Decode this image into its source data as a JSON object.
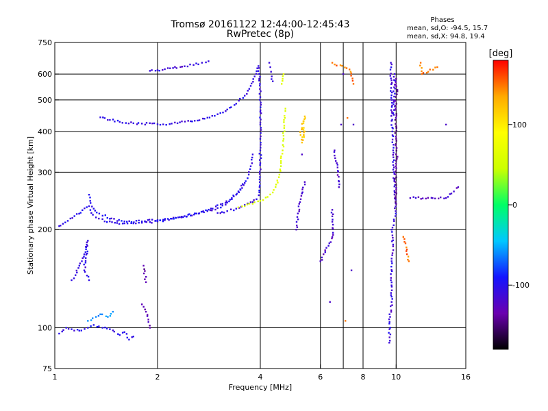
{
  "chart_data": {
    "type": "scatter",
    "title": "Tromsø 20161122 12:44:00-12:45:43",
    "subtitle": "RwPretec (8p)",
    "xlabel": "Frequency [MHz]",
    "ylabel": "Stationary phase Virtual Height [km]",
    "xscale": "log",
    "yscale": "log",
    "xlim": [
      1,
      16
    ],
    "ylim": [
      75,
      750
    ],
    "xticks": [
      1,
      2,
      4,
      6,
      8,
      10,
      16
    ],
    "yticks": [
      75,
      100,
      200,
      300,
      400,
      500,
      600,
      750
    ],
    "xgrid": [
      2,
      4,
      6,
      7,
      8,
      10
    ],
    "ygrid": [
      100,
      200,
      300,
      400,
      500,
      600
    ],
    "grid": true,
    "phase_stats": {
      "heading": "Phases",
      "line_o": "mean, sd,O: -94.5, 15.7",
      "line_x": "mean, sd,X: 94.8, 19.4"
    },
    "colorbar": {
      "label": "[deg]",
      "range": [
        -180,
        180
      ],
      "ticks": [
        100,
        0,
        -100
      ],
      "colors": [
        "#000000",
        "#6a00b0",
        "#1414ff",
        "#00c8ff",
        "#00ff66",
        "#ccff00",
        "#ffff00",
        "#ffaa00",
        "#ff0000"
      ]
    },
    "series": [
      {
        "phase": -105,
        "points": [
          [
            1.03,
            205
          ],
          [
            1.26,
            236
          ],
          [
            1.28,
            225
          ],
          [
            1.32,
            218
          ],
          [
            1.4,
            212
          ],
          [
            1.5,
            210
          ],
          [
            1.6,
            209
          ],
          [
            1.7,
            209
          ],
          [
            1.8,
            210
          ],
          [
            1.9,
            211
          ],
          [
            2.0,
            212
          ],
          [
            2.1,
            214
          ],
          [
            2.2,
            216
          ],
          [
            2.4,
            220
          ],
          [
            2.6,
            224
          ],
          [
            2.8,
            228
          ],
          [
            3.0,
            233
          ],
          [
            3.1,
            237
          ],
          [
            3.2,
            242
          ],
          [
            3.3,
            248
          ],
          [
            3.4,
            256
          ],
          [
            3.5,
            265
          ],
          [
            3.6,
            278
          ],
          [
            3.7,
            295
          ],
          [
            3.75,
            313
          ],
          [
            3.8,
            340
          ]
        ]
      },
      {
        "phase": -100,
        "points": [
          [
            1.26,
            256
          ],
          [
            1.27,
            245
          ],
          [
            1.3,
            232
          ],
          [
            1.35,
            224
          ],
          [
            1.45,
            216
          ],
          [
            1.6,
            212
          ],
          [
            1.8,
            212
          ],
          [
            2.0,
            214
          ],
          [
            2.3,
            218
          ],
          [
            2.6,
            224
          ],
          [
            2.9,
            232
          ],
          [
            3.1,
            240
          ],
          [
            3.3,
            250
          ],
          [
            3.45,
            262
          ],
          [
            3.55,
            276
          ]
        ]
      },
      {
        "phase": -105,
        "points": [
          [
            1.36,
            442
          ],
          [
            1.45,
            434
          ],
          [
            1.55,
            428
          ],
          [
            1.7,
            424
          ],
          [
            1.8,
            423
          ],
          [
            2.0,
            421
          ],
          [
            2.2,
            423
          ],
          [
            2.5,
            430
          ],
          [
            2.8,
            441
          ],
          [
            3.0,
            452
          ],
          [
            3.2,
            467
          ],
          [
            3.4,
            487
          ],
          [
            3.6,
            515
          ],
          [
            3.75,
            552
          ],
          [
            3.85,
            590
          ],
          [
            3.92,
            625
          ]
        ]
      },
      {
        "phase": -105,
        "points": [
          [
            3.95,
            635
          ],
          [
            3.97,
            600
          ],
          [
            3.99,
            560
          ],
          [
            4.0,
            510
          ],
          [
            4.0,
            460
          ],
          [
            4.0,
            420
          ],
          [
            4.0,
            380
          ],
          [
            4.0,
            350
          ],
          [
            4.0,
            320
          ],
          [
            3.99,
            290
          ],
          [
            3.98,
            270
          ],
          [
            3.96,
            255
          ],
          [
            3.9,
            248
          ],
          [
            3.8,
            243
          ],
          [
            3.6,
            238
          ],
          [
            3.4,
            232
          ],
          [
            3.2,
            228
          ],
          [
            3.0,
            225
          ]
        ]
      },
      {
        "phase": -110,
        "points": [
          [
            4.25,
            650
          ],
          [
            4.28,
            630
          ],
          [
            4.3,
            610
          ],
          [
            4.32,
            590
          ],
          [
            4.35,
            570
          ]
        ]
      },
      {
        "phase": -110,
        "points": [
          [
            1.9,
            614
          ],
          [
            2.0,
            617
          ],
          [
            2.1,
            621
          ],
          [
            2.4,
            634
          ],
          [
            2.55,
            640
          ],
          [
            2.7,
            650
          ],
          [
            2.82,
            657
          ]
        ]
      },
      {
        "phase": 60,
        "points": [
          [
            3.45,
            234
          ],
          [
            3.6,
            236
          ],
          [
            3.8,
            240
          ],
          [
            4.0,
            245
          ],
          [
            4.2,
            252
          ],
          [
            4.35,
            260
          ],
          [
            4.45,
            275
          ],
          [
            4.55,
            295
          ],
          [
            4.6,
            320
          ],
          [
            4.65,
            350
          ],
          [
            4.68,
            380
          ],
          [
            4.7,
            410
          ],
          [
            4.72,
            440
          ],
          [
            4.74,
            470
          ]
        ]
      },
      {
        "phase": 65,
        "points": [
          [
            4.62,
            560
          ],
          [
            4.65,
            580
          ],
          [
            4.68,
            600
          ]
        ]
      },
      {
        "phase": 120,
        "points": [
          [
            5.25,
            390
          ],
          [
            5.3,
            410
          ],
          [
            5.35,
            430
          ],
          [
            5.4,
            445
          ],
          [
            5.3,
            370
          ],
          [
            5.4,
            400
          ]
        ]
      },
      {
        "phase": -105,
        "points": [
          [
            1.12,
            140
          ],
          [
            1.15,
            145
          ],
          [
            1.18,
            155
          ],
          [
            1.2,
            160
          ],
          [
            1.22,
            168
          ],
          [
            1.24,
            180
          ],
          [
            1.25,
            185
          ],
          [
            1.22,
            150
          ],
          [
            1.26,
            140
          ]
        ]
      },
      {
        "phase": -100,
        "points": [
          [
            1.03,
            96
          ],
          [
            1.08,
            100
          ],
          [
            1.12,
            99
          ],
          [
            1.18,
            98
          ],
          [
            1.25,
            100
          ],
          [
            1.3,
            102
          ],
          [
            1.38,
            100
          ],
          [
            1.45,
            99
          ],
          [
            1.55,
            95
          ],
          [
            1.6,
            97
          ],
          [
            1.65,
            92
          ],
          [
            1.7,
            94
          ]
        ]
      },
      {
        "phase": -60,
        "points": [
          [
            1.25,
            105
          ],
          [
            1.32,
            108
          ],
          [
            1.36,
            110
          ],
          [
            1.43,
            108
          ],
          [
            1.48,
            112
          ]
        ]
      },
      {
        "phase": -130,
        "points": [
          [
            1.8,
            118
          ],
          [
            1.85,
            112
          ],
          [
            1.88,
            106
          ],
          [
            1.9,
            100
          ],
          [
            1.82,
            155
          ],
          [
            1.85,
            138
          ]
        ]
      },
      {
        "phase": -110,
        "points": [
          [
            9.65,
            650
          ],
          [
            9.7,
            500
          ],
          [
            9.75,
            400
          ],
          [
            9.8,
            350
          ],
          [
            9.85,
            300
          ],
          [
            9.9,
            260
          ],
          [
            9.95,
            220
          ],
          [
            9.7,
            200
          ],
          [
            9.8,
            180
          ],
          [
            9.7,
            160
          ],
          [
            9.65,
            140
          ],
          [
            9.7,
            120
          ],
          [
            9.6,
            108
          ],
          [
            9.55,
            90
          ],
          [
            9.9,
            600
          ],
          [
            9.85,
            450
          ]
        ]
      },
      {
        "phase": -140,
        "points": [
          [
            10.0,
            580
          ],
          [
            10.05,
            520
          ],
          [
            9.95,
            480
          ],
          [
            10.0,
            380
          ],
          [
            10.05,
            330
          ],
          [
            9.95,
            280
          ],
          [
            10.0,
            240
          ]
        ]
      },
      {
        "phase": 150,
        "points": [
          [
            6.5,
            650
          ],
          [
            7.3,
            620
          ],
          [
            7.5,
            560
          ],
          [
            10.5,
            190
          ],
          [
            10.9,
            160
          ],
          [
            11.8,
            650
          ],
          [
            11.9,
            600
          ],
          [
            13.2,
            630
          ],
          [
            7.2,
            440
          ],
          [
            7.1,
            105
          ]
        ]
      },
      {
        "phase": -120,
        "points": [
          [
            5.1,
            200
          ],
          [
            5.2,
            240
          ],
          [
            5.4,
            280
          ],
          [
            6.0,
            160
          ],
          [
            6.5,
            190
          ],
          [
            6.5,
            230
          ],
          [
            6.6,
            350
          ],
          [
            6.7,
            320
          ],
          [
            6.8,
            270
          ],
          [
            6.9,
            420
          ],
          [
            7.0,
            600
          ],
          [
            7.4,
            150
          ],
          [
            7.5,
            420
          ],
          [
            11.0,
            250
          ],
          [
            14.0,
            250
          ],
          [
            15.2,
            270
          ],
          [
            14.0,
            420
          ],
          [
            6.4,
            120
          ],
          [
            5.3,
            340
          ]
        ]
      }
    ]
  }
}
